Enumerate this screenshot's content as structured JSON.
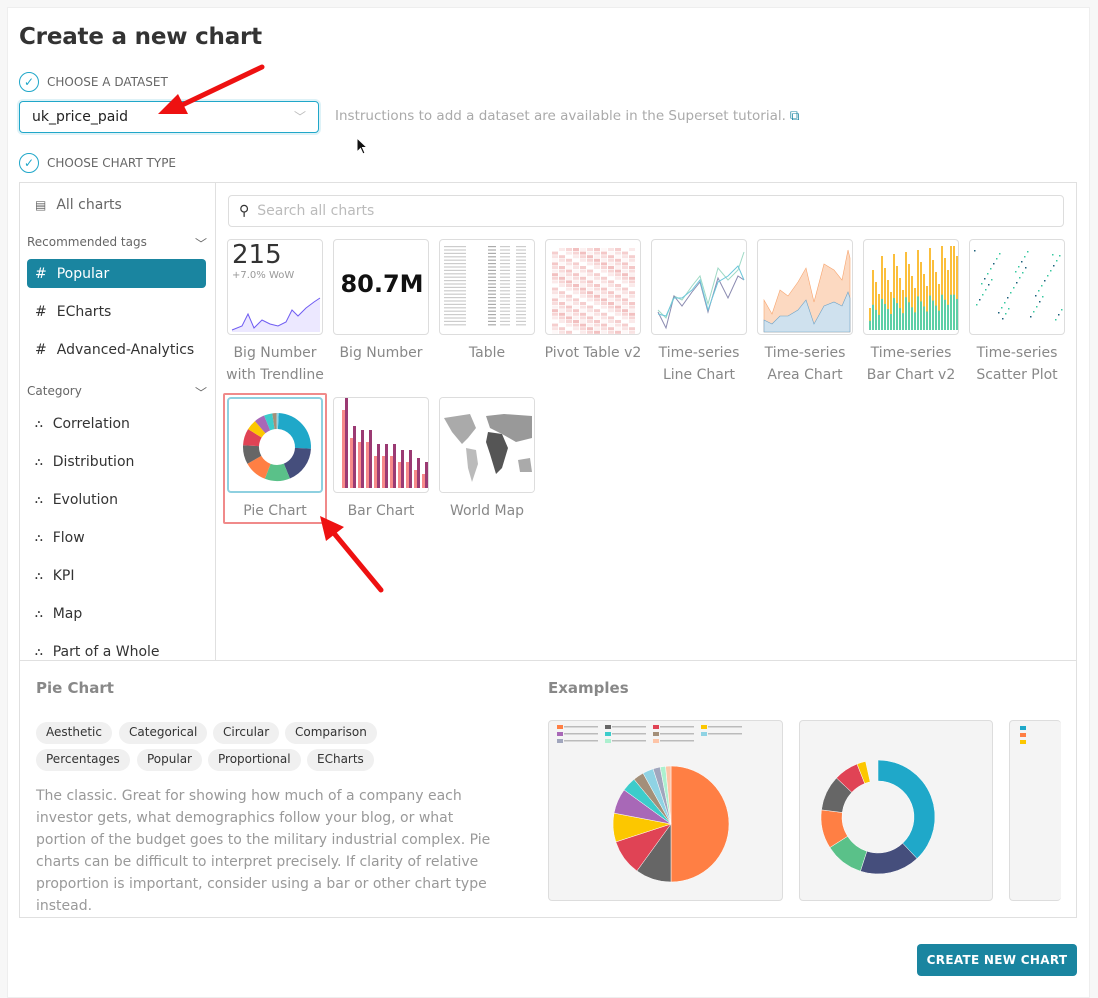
{
  "title": "Create a new chart",
  "dataset": {
    "step_label": "CHOOSE A DATASET",
    "value": "uk_price_paid",
    "instructions": "Instructions to add a dataset are available in the Superset tutorial."
  },
  "chart_type": {
    "step_label": "CHOOSE CHART TYPE"
  },
  "sidebar": {
    "all_charts": "All charts",
    "recommended_heading": "Recommended tags",
    "tags": [
      {
        "label": "Popular",
        "selected": true
      },
      {
        "label": "ECharts"
      },
      {
        "label": "Advanced-Analytics"
      }
    ],
    "category_heading": "Category",
    "categories": [
      "Correlation",
      "Distribution",
      "Evolution",
      "Flow",
      "KPI",
      "Map",
      "Part of a Whole"
    ]
  },
  "search": {
    "placeholder": "Search all charts"
  },
  "charts": [
    {
      "label": "Big Number with Trendline",
      "preview_number": "215",
      "preview_sub": "+7.0% WoW"
    },
    {
      "label": "Big Number",
      "preview_number": "80.7M"
    },
    {
      "label": "Table"
    },
    {
      "label": "Pivot Table v2"
    },
    {
      "label": "Time-series Line Chart"
    },
    {
      "label": "Time-series Area Chart"
    },
    {
      "label": "Time-series Bar Chart v2"
    },
    {
      "label": "Time-series Scatter Plot"
    },
    {
      "label": "Pie Chart",
      "selected": true
    },
    {
      "label": "Bar Chart"
    },
    {
      "label": "World Map"
    }
  ],
  "details": {
    "title": "Pie Chart",
    "tags": [
      "Aesthetic",
      "Categorical",
      "Circular",
      "Comparison",
      "Percentages",
      "Popular",
      "Proportional",
      "ECharts"
    ],
    "description": "The classic. Great for showing how much of a company each investor gets, what demographics follow your blog, or what portion of the budget goes to the military industrial complex. Pie charts can be difficult to interpret precisely. If clarity of relative proportion is important, consider using a bar or other chart type instead.",
    "examples_title": "Examples"
  },
  "create_button": "CREATE NEW CHART",
  "colors": {
    "accent": "#1a85a0",
    "annotation": "#ee1111"
  }
}
